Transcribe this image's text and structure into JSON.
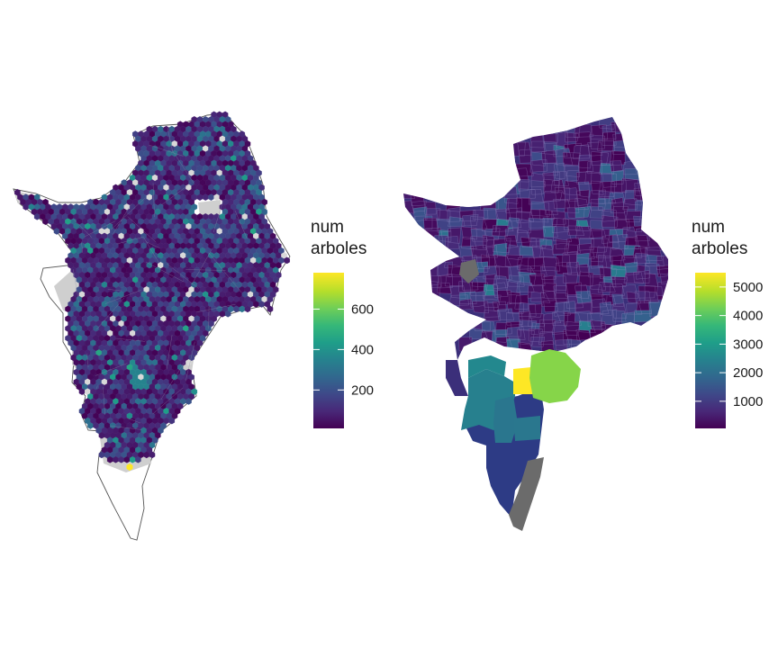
{
  "panels": [
    {
      "id": "hex",
      "legend": {
        "title_lines": [
          "num",
          "arboles"
        ],
        "ticks": [
          200,
          400,
          600
        ],
        "domain": [
          10,
          780
        ]
      },
      "background_color": "#cfcfcf",
      "outline_color": "#555555"
    },
    {
      "id": "choropleth",
      "legend": {
        "title_lines": [
          "num",
          "arboles"
        ],
        "ticks": [
          1000,
          2000,
          3000,
          4000,
          5000
        ],
        "domain": [
          50,
          5500
        ]
      },
      "na_color": "#6b6b6b"
    }
  ],
  "colormap": "viridis",
  "viridis_stops": [
    "#440154",
    "#482878",
    "#3e4989",
    "#31688e",
    "#26828e",
    "#1f9e89",
    "#35b779",
    "#6ece58",
    "#b5de2b",
    "#fde725"
  ]
}
